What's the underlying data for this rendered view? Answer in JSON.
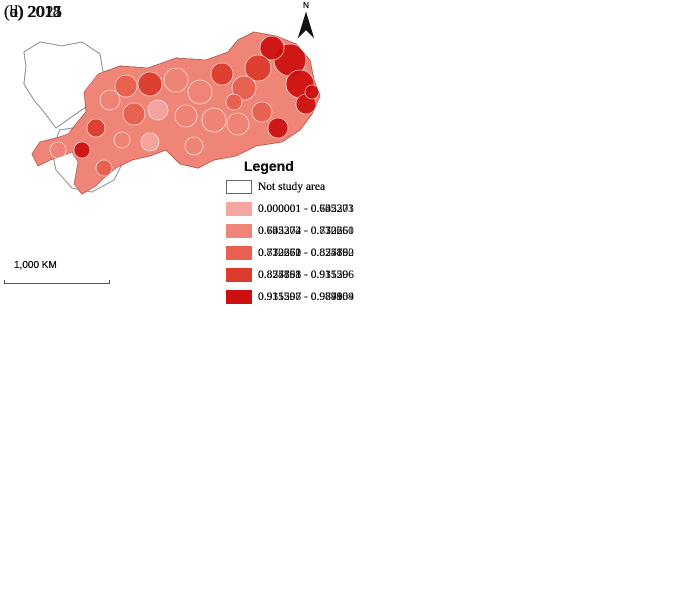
{
  "north_label": "N",
  "scale_label": "1,000 KM",
  "not_study_color": "#ffffff",
  "panels": [
    {
      "title": "(a) 2012",
      "legend_title": "Legend",
      "legend": [
        {
          "label": "Not study area",
          "color": "#ffffff"
        },
        {
          "label": "0.000001 - 0.635271",
          "color": "#f4a6a0"
        },
        {
          "label": "0.635272 - 0.732260",
          "color": "#ef8577"
        },
        {
          "label": "0.732261 - 0.825850",
          "color": "#e8604f"
        },
        {
          "label": "0.825851 - 0.915596",
          "color": "#dc3a2c"
        },
        {
          "label": "0.915597 - 0.987909",
          "color": "#cc0f0f"
        }
      ]
    },
    {
      "title": "(b) 2015",
      "legend_title": "Legend",
      "legend": [
        {
          "label": "Not study area",
          "color": "#ffffff"
        },
        {
          "label": "0.000001 - 0.63527",
          "color": "#f4a6a0"
        },
        {
          "label": "0.635272 - 0.73226",
          "color": "#ef8577"
        },
        {
          "label": "0.732261 - 0.82585",
          "color": "#e8604f"
        },
        {
          "label": "0.825851 - 0.91559",
          "color": "#dc3a2c"
        },
        {
          "label": "0.915597 - 0.98790",
          "color": "#cc0f0f"
        }
      ]
    },
    {
      "title": "(c) 2018",
      "legend_title": "Legend",
      "legend": [
        {
          "label": "Not study area",
          "color": "#ffffff"
        },
        {
          "label": "0.000001 - 0.702273",
          "color": "#f4a6a0"
        },
        {
          "label": "0.702274 - 0.812351",
          "color": "#ef8577"
        },
        {
          "label": "0.812352 - 0.877762",
          "color": "#e8604f"
        },
        {
          "label": "0.877763 - 0.931206",
          "color": "#dc3a2c"
        },
        {
          "label": "0.931207 - 0.984854",
          "color": "#cc0f0f"
        }
      ]
    },
    {
      "title": "(d) 2021",
      "legend_title": "Legend",
      "legend": [
        {
          "label": "Not study area",
          "color": "#ffffff"
        },
        {
          "label": "0.000001 - 0.64530",
          "color": "#f4a6a0"
        },
        {
          "label": "0.645304 - 0.77066",
          "color": "#ef8577"
        },
        {
          "label": "0.770670 - 0.85419",
          "color": "#e8604f"
        },
        {
          "label": "0.854198 - 0.91559",
          "color": "#dc3a2c"
        },
        {
          "label": "0.915598 - 0.97910",
          "color": "#cc0f0f"
        }
      ]
    }
  ]
}
